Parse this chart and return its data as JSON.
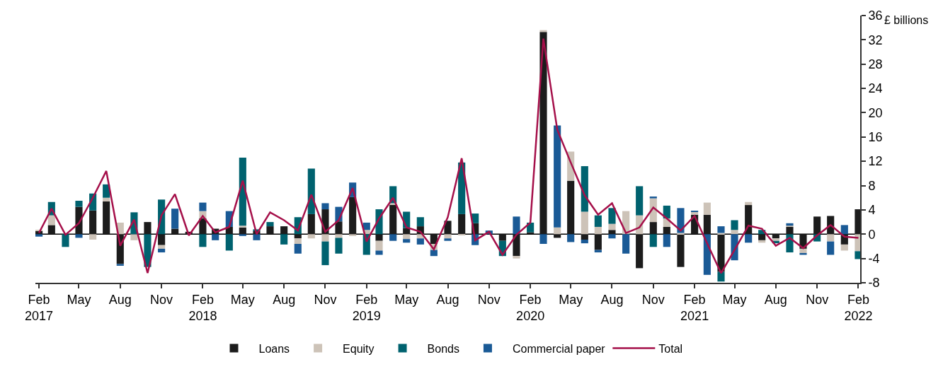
{
  "chart_data": {
    "type": "bar",
    "stacked": true,
    "ylabel": "£ billions",
    "x": [
      "2017-02",
      "2017-03",
      "2017-04",
      "2017-05",
      "2017-06",
      "2017-07",
      "2017-08",
      "2017-09",
      "2017-10",
      "2017-11",
      "2017-12",
      "2018-01",
      "2018-02",
      "2018-03",
      "2018-04",
      "2018-05",
      "2018-06",
      "2018-07",
      "2018-08",
      "2018-09",
      "2018-10",
      "2018-11",
      "2018-12",
      "2019-01",
      "2019-02",
      "2019-03",
      "2019-04",
      "2019-05",
      "2019-06",
      "2019-07",
      "2019-08",
      "2019-09",
      "2019-10",
      "2019-11",
      "2019-12",
      "2020-01",
      "2020-02",
      "2020-03",
      "2020-04",
      "2020-05",
      "2020-06",
      "2020-07",
      "2020-08",
      "2020-09",
      "2020-10",
      "2020-11",
      "2020-12",
      "2021-01",
      "2021-02",
      "2021-03",
      "2021-04",
      "2021-05",
      "2021-06",
      "2021-07",
      "2021-08",
      "2021-09",
      "2021-10",
      "2021-11",
      "2021-12",
      "2022-01",
      "2022-02"
    ],
    "series": [
      {
        "name": "Loans",
        "color": "#1c1c1c",
        "values": [
          0.5,
          1.5,
          null,
          4.5,
          3.9,
          5.4,
          -4.9,
          0,
          2.0,
          -1.8,
          0.9,
          0.4,
          2.6,
          0.9,
          1.2,
          1.1,
          0.5,
          1.3,
          1.3,
          -0.7,
          3.3,
          4.1,
          2.1,
          6.1,
          0,
          -1.1,
          4.9,
          1.0,
          1.3,
          -1.6,
          2.2,
          3.3,
          1.8,
          0,
          -1.1,
          -3.6,
          0.3,
          33.3,
          -0.6,
          8.8,
          -0.9,
          -2.6,
          0.7,
          0,
          -5.6,
          2.0,
          1.2,
          -5.4,
          3.2,
          3.2,
          -6.2,
          0,
          4.8,
          -1.0,
          -0.7,
          1.2,
          -2.4,
          2.9,
          3.0,
          -1.7,
          4.1
        ]
      },
      {
        "name": "Equity",
        "color": "#cdc3b8",
        "values": [
          0.2,
          1.6,
          0,
          0,
          -0.9,
          0.6,
          1.9,
          -1.0,
          0,
          -0.6,
          0,
          0,
          1.2,
          0,
          0,
          0.3,
          0,
          0,
          0,
          -0.9,
          -0.7,
          -1.2,
          -0.6,
          -0.3,
          0.7,
          -1.6,
          0.2,
          -0.8,
          -0.7,
          -1.0,
          -0.7,
          -0.2,
          0,
          0,
          0,
          -0.4,
          0,
          0.3,
          1.1,
          4.8,
          3.7,
          1.2,
          1.0,
          3.8,
          3.1,
          3.9,
          1.4,
          0.2,
          0.5,
          2.0,
          0.2,
          0.7,
          0.5,
          -0.4,
          -0.4,
          0.2,
          -0.7,
          0,
          -1.2,
          -1.0,
          -2.8
        ]
      },
      {
        "name": "Bonds",
        "color": "#00626f",
        "values": [
          0,
          2.2,
          -2.1,
          1.0,
          2.8,
          2.2,
          0,
          3.6,
          -5.4,
          5.7,
          0,
          0,
          -2.1,
          0,
          -2.7,
          11.2,
          0.3,
          0.7,
          -1.7,
          2.8,
          7.5,
          -3.9,
          -2.6,
          0,
          -3.4,
          4.1,
          2.8,
          2.7,
          1.5,
          0,
          0,
          8.5,
          1.6,
          0,
          -2.5,
          0,
          1.6,
          0,
          0,
          0,
          7.5,
          1.9,
          2.6,
          0,
          4.8,
          -2.1,
          2.1,
          0,
          0,
          0,
          -1.6,
          1.6,
          0,
          0.7,
          -0.4,
          -3.0,
          0,
          -1.2,
          0,
          0,
          -1.3
        ]
      },
      {
        "name": "Commercial paper",
        "color": "#1a5a96",
        "values": [
          -0.4,
          0,
          0,
          -0.6,
          0,
          0,
          -0.3,
          0,
          0,
          -0.6,
          3.3,
          0,
          1.4,
          -1.0,
          2.6,
          -0.3,
          -1.0,
          0,
          0,
          -1.6,
          0,
          1.0,
          2.4,
          2.4,
          1.2,
          -0.7,
          -1.1,
          -0.6,
          -1.0,
          -1.0,
          -0.4,
          0,
          -1.8,
          0.6,
          0,
          2.9,
          0,
          -1.6,
          16.8,
          -1.3,
          -0.6,
          -0.4,
          -0.7,
          -3.2,
          0,
          0.3,
          -2.1,
          4.1,
          0.1,
          -6.7,
          1.1,
          -4.3,
          -1.4,
          0,
          0,
          0.4,
          -0.3,
          0,
          -2.2,
          1.5,
          0
        ]
      },
      {
        "name": "Total",
        "type": "line",
        "color": "#a5104a",
        "values": [
          0.2,
          4.2,
          -0.1,
          1.8,
          6.0,
          10.4,
          -1.9,
          2.4,
          -6.4,
          3.1,
          6.6,
          -0.2,
          3.0,
          0.3,
          1.2,
          8.8,
          0,
          3.6,
          2.3,
          0.6,
          6.5,
          0.4,
          2.3,
          7.6,
          -1.2,
          2.6,
          6.0,
          1.1,
          0.4,
          -2.5,
          2.8,
          12.5,
          -1.0,
          0.4,
          -3.4,
          -0.1,
          1.9,
          32.2,
          17.2,
          11.8,
          6.4,
          3.2,
          5.1,
          0.2,
          1.1,
          4.4,
          2.6,
          0.6,
          3.0,
          -1.5,
          -6.4,
          -2.6,
          1.4,
          0.9,
          -1.9,
          -0.6,
          -2.3,
          -0.2,
          1.5,
          -0.4,
          -0.6
        ]
      }
    ],
    "xlim": [
      "2017-01-24",
      "2022-02-05"
    ],
    "xticks": [
      {
        "value": "2017-02",
        "label": "Feb\n2017"
      },
      {
        "value": "2017-05",
        "label": "May"
      },
      {
        "value": "2017-08",
        "label": "Aug"
      },
      {
        "value": "2017-11",
        "label": "Nov"
      },
      {
        "value": "2018-02",
        "label": "Feb\n2018"
      },
      {
        "value": "2018-05",
        "label": "May"
      },
      {
        "value": "2018-08",
        "label": "Aug"
      },
      {
        "value": "2018-11",
        "label": "Nov"
      },
      {
        "value": "2019-02",
        "label": "Feb\n2019"
      },
      {
        "value": "2019-05",
        "label": "May"
      },
      {
        "value": "2019-08",
        "label": "Aug"
      },
      {
        "value": "2019-11",
        "label": "Nov"
      },
      {
        "value": "2020-02",
        "label": "Feb\n2020"
      },
      {
        "value": "2020-05",
        "label": "May"
      },
      {
        "value": "2020-08",
        "label": "Aug"
      },
      {
        "value": "2020-11",
        "label": "Nov"
      },
      {
        "value": "2021-02",
        "label": "Feb\n2021"
      },
      {
        "value": "2021-05",
        "label": "May"
      },
      {
        "value": "2021-08",
        "label": "Aug"
      },
      {
        "value": "2021-11",
        "label": "Nov"
      },
      {
        "value": "2022-02",
        "label": "Feb\n2022"
      }
    ],
    "ylim": [
      -8,
      36
    ],
    "yticks": [
      -8,
      -4,
      0,
      4,
      8,
      12,
      16,
      20,
      24,
      28,
      32,
      36
    ],
    "ref_lines": [
      {
        "axis": "y",
        "value": 0,
        "color": "#000000"
      }
    ],
    "grid": false,
    "legend": "bottom",
    "marker": "none",
    "line_style": "solid"
  }
}
